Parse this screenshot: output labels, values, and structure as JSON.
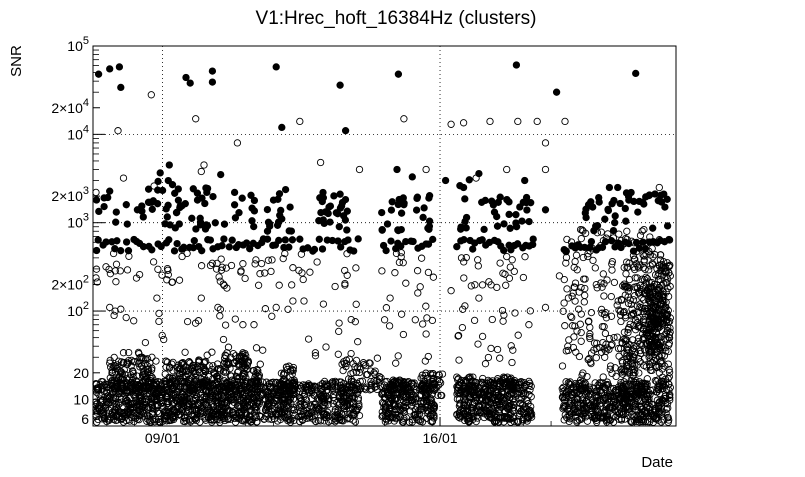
{
  "chart_data": {
    "type": "scatter",
    "title": "V1:Hrec_hoft_16384Hz (clusters)",
    "xlabel": "Date",
    "ylabel": "SNR",
    "y_scale": "log",
    "ylim": [
      5,
      100000
    ],
    "xlim": [
      0,
      21
    ],
    "grid": true,
    "x_ticks": [
      {
        "value": 2.5,
        "label": "09/01"
      },
      {
        "value": 12.5,
        "label": "16/01"
      }
    ],
    "y_ticks": [
      {
        "value": 6,
        "label": "6"
      },
      {
        "value": 10,
        "label": "10"
      },
      {
        "value": 20,
        "label": "20"
      },
      {
        "value": 100,
        "label": "10",
        "exp": "2"
      },
      {
        "value": 200,
        "label": "2×10",
        "exp": "2"
      },
      {
        "value": 1000,
        "label": "10",
        "exp": "3"
      },
      {
        "value": 2000,
        "label": "2×10",
        "exp": "3"
      },
      {
        "value": 10000,
        "label": "10",
        "exp": "4"
      },
      {
        "value": 20000,
        "label": "2×10",
        "exp": "4"
      },
      {
        "value": 100000,
        "label": "10",
        "exp": "5"
      }
    ],
    "marker_series": [
      {
        "marker": "filled circle",
        "color": "#000000"
      },
      {
        "marker": "open circle",
        "color": "#000000"
      }
    ],
    "filled_points": [
      [
        0.2,
        48000
      ],
      [
        0.6,
        55000
      ],
      [
        0.95,
        58000
      ],
      [
        1.0,
        34000
      ],
      [
        3.35,
        44000
      ],
      [
        3.5,
        38000
      ],
      [
        4.3,
        52000
      ],
      [
        4.3,
        39000
      ],
      [
        6.6,
        58000
      ],
      [
        6.8,
        12000
      ],
      [
        8.9,
        36000
      ],
      [
        9.1,
        11000
      ],
      [
        11.0,
        48000
      ],
      [
        15.25,
        61000
      ],
      [
        16.7,
        30000
      ],
      [
        19.55,
        49000
      ],
      [
        2.75,
        4500
      ],
      [
        4.6,
        3500
      ],
      [
        10.95,
        4000
      ],
      [
        11.5,
        3300
      ],
      [
        12.7,
        3000
      ],
      [
        13.35,
        2500
      ],
      [
        13.9,
        3600
      ],
      [
        14.6,
        1700
      ],
      [
        15.55,
        3000
      ],
      [
        17.85,
        1600
      ],
      [
        18.6,
        2500
      ],
      [
        18.9,
        2500
      ],
      [
        19.3,
        1800
      ],
      [
        20.6,
        1500
      ],
      [
        1.2,
        1600
      ],
      [
        1.6,
        1400
      ],
      [
        2.0,
        1700
      ],
      [
        3.2,
        1550
      ],
      [
        4.1,
        2200
      ],
      [
        5.1,
        2200
      ],
      [
        6.5,
        1800
      ],
      [
        7.1,
        1500
      ],
      [
        8.5,
        1500
      ],
      [
        8.9,
        2100
      ],
      [
        10.4,
        1300
      ],
      [
        11.2,
        1600
      ],
      [
        12.1,
        1900
      ],
      [
        14.0,
        1700
      ],
      [
        15.5,
        1700
      ],
      [
        16.3,
        1400
      ],
      [
        18.0,
        1500
      ],
      [
        19.8,
        1700
      ],
      [
        20.4,
        1800
      ]
    ],
    "filled_bands": [
      {
        "x": [
          0.05,
          2.2
        ],
        "ylim": [
          900,
          2500
        ],
        "n": 18
      },
      {
        "x": [
          2.3,
          3.0
        ],
        "ylim": [
          800,
          4500
        ],
        "n": 14
      },
      {
        "x": [
          3.0,
          4.8
        ],
        "ylim": [
          800,
          2500
        ],
        "n": 26
      },
      {
        "x": [
          4.9,
          6.0
        ],
        "ylim": [
          800,
          2200
        ],
        "n": 10
      },
      {
        "x": [
          6.2,
          7.2
        ],
        "ylim": [
          800,
          2600
        ],
        "n": 16
      },
      {
        "x": [
          8.1,
          8.8
        ],
        "ylim": [
          800,
          2400
        ],
        "n": 14
      },
      {
        "x": [
          8.8,
          9.3
        ],
        "ylim": [
          800,
          2400
        ],
        "n": 10
      },
      {
        "x": [
          10.4,
          11.4
        ],
        "ylim": [
          800,
          2000
        ],
        "n": 14
      },
      {
        "x": [
          11.6,
          12.3
        ],
        "ylim": [
          800,
          2100
        ],
        "n": 10
      },
      {
        "x": [
          13.2,
          13.6
        ],
        "ylim": [
          800,
          3500
        ],
        "n": 8
      },
      {
        "x": [
          14.0,
          15.1
        ],
        "ylim": [
          800,
          2000
        ],
        "n": 14
      },
      {
        "x": [
          15.2,
          15.8
        ],
        "ylim": [
          800,
          2200
        ],
        "n": 10
      },
      {
        "x": [
          17.5,
          18.6
        ],
        "ylim": [
          800,
          2000
        ],
        "n": 12
      },
      {
        "x": [
          18.6,
          20.8
        ],
        "ylim": [
          800,
          2200
        ],
        "n": 26
      }
    ],
    "filled_baseline": {
      "y": 560,
      "spread": 0.07,
      "n": 135,
      "segments": [
        [
          0.05,
          2.2
        ],
        [
          2.3,
          2.5
        ],
        [
          2.6,
          7.3
        ],
        [
          7.4,
          8.5
        ],
        [
          8.6,
          9.6
        ],
        [
          10.4,
          12.3
        ],
        [
          13.1,
          15.8
        ],
        [
          15.8,
          15.9
        ],
        [
          16.9,
          20.8
        ]
      ]
    },
    "open_points": [
      [
        2.1,
        28000
      ],
      [
        3.7,
        15000
      ],
      [
        7.45,
        14000
      ],
      [
        11.2,
        15000
      ],
      [
        12.9,
        13000
      ],
      [
        13.35,
        13500
      ],
      [
        14.3,
        14000
      ],
      [
        15.3,
        14000
      ],
      [
        16.0,
        14000
      ],
      [
        17.0,
        14000
      ],
      [
        0.9,
        11000
      ],
      [
        0.1,
        2200
      ],
      [
        1.1,
        3200
      ],
      [
        2.2,
        2600
      ],
      [
        3.9,
        3800
      ],
      [
        4.0,
        4500
      ],
      [
        5.2,
        8000
      ],
      [
        8.2,
        4800
      ],
      [
        9.6,
        4000
      ],
      [
        12.0,
        4000
      ],
      [
        13.8,
        3200
      ],
      [
        14.9,
        4000
      ],
      [
        16.3,
        4000
      ],
      [
        16.3,
        8000
      ],
      [
        20.4,
        2500
      ],
      [
        0.6,
        110
      ],
      [
        0.8,
        100
      ],
      [
        1.0,
        105
      ],
      [
        2.3,
        140
      ],
      [
        3.9,
        140
      ],
      [
        4.5,
        110
      ],
      [
        5.4,
        70
      ],
      [
        5.8,
        70
      ],
      [
        6.6,
        110
      ],
      [
        7.2,
        130
      ],
      [
        7.6,
        130
      ],
      [
        8.3,
        120
      ],
      [
        9.3,
        80
      ],
      [
        10.7,
        140
      ],
      [
        11.7,
        160
      ],
      [
        12.0,
        55
      ],
      [
        12.9,
        170
      ],
      [
        13.9,
        140
      ],
      [
        14.8,
        90
      ],
      [
        15.2,
        95
      ],
      [
        15.7,
        70
      ],
      [
        16.3,
        110
      ],
      [
        16.8,
        250
      ],
      [
        17.3,
        160
      ],
      [
        17.9,
        55
      ]
    ],
    "open_bands": [
      {
        "x": [
          0.05,
          20.8
        ],
        "ylim": [
          180,
          470
        ],
        "n": 150
      },
      {
        "x": [
          0.05,
          20.8
        ],
        "ylim": [
          25,
          120
        ],
        "n": 130
      },
      {
        "x": [
          0.05,
          20.8
        ],
        "ylim": [
          5.5,
          16
        ],
        "n": 2800
      },
      {
        "x": [
          16.8,
          20.8
        ],
        "ylim": [
          16,
          900
        ],
        "n": 240
      },
      {
        "x": [
          19.0,
          20.8
        ],
        "ylim": [
          16,
          400
        ],
        "n": 130
      }
    ],
    "open_dense": [
      {
        "x": [
          0.6,
          2.2
        ],
        "ylim": [
          12,
          30
        ],
        "n": 140
      },
      {
        "x": [
          2.6,
          4.6
        ],
        "ylim": [
          12,
          28
        ],
        "n": 150
      },
      {
        "x": [
          4.7,
          5.6
        ],
        "ylim": [
          12,
          34
        ],
        "n": 90
      },
      {
        "x": [
          5.7,
          6.0
        ],
        "ylim": [
          12,
          22
        ],
        "n": 30
      },
      {
        "x": [
          6.7,
          7.3
        ],
        "ylim": [
          12,
          24
        ],
        "n": 40
      },
      {
        "x": [
          9.0,
          10.4
        ],
        "ylim": [
          12,
          30
        ],
        "n": 60
      },
      {
        "x": [
          10.6,
          11.3
        ],
        "ylim": [
          11,
          18
        ],
        "n": 40
      },
      {
        "x": [
          11.8,
          12.6
        ],
        "ylim": [
          11,
          20
        ],
        "n": 50
      },
      {
        "x": [
          13.1,
          13.8
        ],
        "ylim": [
          11,
          18
        ],
        "n": 40
      },
      {
        "x": [
          14.0,
          15.2
        ],
        "ylim": [
          11,
          18
        ],
        "n": 60
      },
      {
        "x": [
          19.0,
          19.6
        ],
        "ylim": [
          11,
          40
        ],
        "n": 40
      },
      {
        "x": [
          20.0,
          20.5
        ],
        "ylim": [
          20,
          200
        ],
        "n": 120
      },
      {
        "x": [
          19.6,
          20.8
        ],
        "ylim": [
          40,
          450
        ],
        "n": 100
      }
    ],
    "gaps": [
      [
        7.3,
        7.4
      ],
      [
        8.5,
        8.6
      ],
      [
        9.6,
        10.4
      ],
      [
        12.3,
        13.1
      ],
      [
        15.8,
        16.8
      ],
      [
        16.0,
        16.9
      ]
    ]
  }
}
